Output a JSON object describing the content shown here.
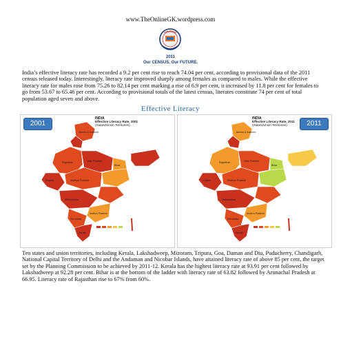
{
  "header": {
    "site_url": "www.TheOnlineGK.wordpress.com"
  },
  "census": {
    "year": "2011",
    "tagline": "Our CENSUS, Our FUTURE."
  },
  "intro_paragraph": "India’s effective literacy rate has recorded a 9.2 per cent rise to reach 74.04 per cent, according to provisional data of the 2011 census released today. Interestingly, literacy rate improved sharply among females as compared to males. While the effective literacy rate for males rose from 75.26 to 82.14 per cent marking a rise of 6.9 per cent, it increased by 11.8 per cent for females to go from 53.67 to 65.46 per cent. According to provisional totals of the latest census, literates constitute 74 per cent of total population aged seven and above.",
  "section_title": "Effective Literacy",
  "maps": [
    {
      "year": "2001",
      "country": "INDIA",
      "title_line1": "Effective Literacy Rate, 2001",
      "title_line2": "(States/Union Territories)"
    },
    {
      "year": "2011",
      "country": "INDIA",
      "title_line1": "Effective Literacy Rate, 2011",
      "title_line2": "(States/Union Territories)"
    }
  ],
  "colors": {
    "badge": "#3d79bd",
    "title": "#2c6aa8",
    "high": "#c8311e",
    "mid_high": "#e04a1f",
    "mid": "#f39a2c",
    "low": "#f7c948",
    "lowest": "#b9d84a"
  },
  "outro_paragraph": "Ten states and union territories, including Kerala, Lakshadweep, Mizoram, Tripura, Goa, Daman and Diu, Puducherry, Chandigarh, National Capital Territory of Delhi and the Andaman and Nicobar Islands, have attained literacy rate of above 85 per cent, the target set by the Planning Commission to be achieved by 2011-12. Kerala has the highest literacy rate at 93.91 per cent followed by Lakshadweep at 92.28 per cent. Bihar is at the bottom of the ladder with literacy rate of 63.82 followed by Arunachal Pradesh at 66.95. Literacy rate of Rajasthan rise to 67% from 60%."
}
